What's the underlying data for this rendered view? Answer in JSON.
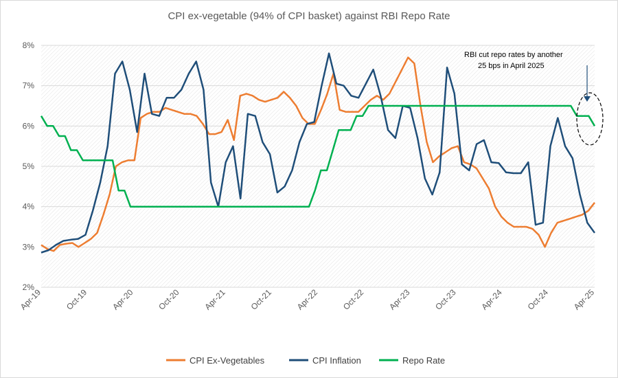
{
  "chart_data": {
    "type": "line",
    "title": "CPI ex-vegetable (94% of CPI basket) against RBI Repo Rate",
    "x_tick_labels": [
      "Apr-19",
      "Oct-19",
      "Apr-20",
      "Oct-20",
      "Apr-21",
      "Oct-21",
      "Apr-22",
      "Oct-22",
      "Apr-23",
      "Oct-23",
      "Apr-24",
      "Oct-24",
      "Apr-25"
    ],
    "x_start": "Apr-19",
    "x_end": "Apr-25",
    "ylim": [
      2,
      8
    ],
    "y_tick_labels": [
      "2%",
      "3%",
      "4%",
      "5%",
      "6%",
      "7%",
      "8%"
    ],
    "grid": "horizontal",
    "background_pattern": "diagonal-hatch",
    "legend_position": "bottom",
    "annotation": {
      "lines": [
        "RBI cut repo rates by another",
        "25 bps in April 2025"
      ],
      "arrow": true,
      "highlight": "dashed-ellipse"
    },
    "series": [
      {
        "name": "CPI Ex-Vegetables",
        "color": "#ED7D31",
        "values": [
          3.05,
          2.95,
          2.9,
          3.05,
          3.08,
          3.1,
          3.0,
          3.1,
          3.2,
          3.35,
          3.8,
          4.3,
          5.0,
          5.1,
          5.15,
          5.15,
          6.2,
          6.3,
          6.35,
          6.35,
          6.45,
          6.4,
          6.35,
          6.3,
          6.3,
          6.25,
          6.05,
          5.8,
          5.8,
          5.85,
          6.15,
          5.65,
          6.75,
          6.8,
          6.75,
          6.65,
          6.6,
          6.65,
          6.7,
          6.85,
          6.7,
          6.5,
          6.2,
          6.05,
          6.05,
          6.4,
          6.8,
          7.3,
          6.4,
          6.35,
          6.35,
          6.35,
          6.5,
          6.65,
          6.75,
          6.65,
          6.8,
          7.1,
          7.4,
          7.7,
          7.55,
          6.5,
          5.6,
          5.1,
          5.25,
          5.35,
          5.45,
          5.5,
          5.1,
          5.05,
          4.95,
          4.7,
          4.45,
          4.0,
          3.75,
          3.6,
          3.5,
          3.5,
          3.5,
          3.45,
          3.3,
          3.0,
          3.35,
          3.6,
          3.65,
          3.7,
          3.75,
          3.8,
          3.9,
          4.1
        ]
      },
      {
        "name": "CPI Inflation",
        "color": "#1F4E79",
        "values": [
          2.86,
          2.92,
          3.05,
          3.15,
          3.18,
          3.2,
          3.3,
          3.9,
          4.6,
          5.5,
          7.3,
          7.6,
          6.9,
          5.85,
          7.3,
          6.3,
          6.25,
          6.7,
          6.7,
          6.9,
          7.3,
          7.6,
          6.9,
          4.6,
          4.0,
          5.1,
          5.5,
          4.2,
          6.3,
          6.25,
          5.6,
          5.3,
          4.35,
          4.5,
          4.9,
          5.6,
          6.05,
          6.1,
          7.0,
          7.8,
          7.05,
          7.0,
          6.75,
          6.7,
          7.05,
          7.4,
          6.75,
          5.9,
          5.7,
          6.5,
          6.45,
          5.7,
          4.7,
          4.3,
          4.85,
          7.45,
          6.8,
          5.05,
          4.9,
          5.55,
          5.65,
          5.1,
          5.08,
          4.85,
          4.83,
          4.83,
          5.1,
          3.55,
          3.6,
          5.5,
          6.2,
          5.5,
          5.2,
          4.3,
          3.6,
          3.35
        ]
      },
      {
        "name": "Repo Rate",
        "color": "#00B050",
        "values": [
          6.25,
          6.0,
          6.0,
          5.75,
          5.75,
          5.4,
          5.4,
          5.15,
          5.15,
          5.15,
          5.15,
          5.15,
          5.15,
          4.4,
          4.4,
          4.0,
          4.0,
          4.0,
          4.0,
          4.0,
          4.0,
          4.0,
          4.0,
          4.0,
          4.0,
          4.0,
          4.0,
          4.0,
          4.0,
          4.0,
          4.0,
          4.0,
          4.0,
          4.0,
          4.0,
          4.0,
          4.0,
          4.0,
          4.0,
          4.0,
          4.0,
          4.0,
          4.0,
          4.0,
          4.0,
          4.0,
          4.4,
          4.9,
          4.9,
          5.4,
          5.9,
          5.9,
          5.9,
          6.25,
          6.25,
          6.5,
          6.5,
          6.5,
          6.5,
          6.5,
          6.5,
          6.5,
          6.5,
          6.5,
          6.5,
          6.5,
          6.5,
          6.5,
          6.5,
          6.5,
          6.5,
          6.5,
          6.5,
          6.5,
          6.5,
          6.5,
          6.5,
          6.5,
          6.5,
          6.5,
          6.5,
          6.5,
          6.5,
          6.5,
          6.5,
          6.5,
          6.5,
          6.5,
          6.5,
          6.5,
          6.25,
          6.25,
          6.25,
          6.0
        ]
      }
    ]
  }
}
